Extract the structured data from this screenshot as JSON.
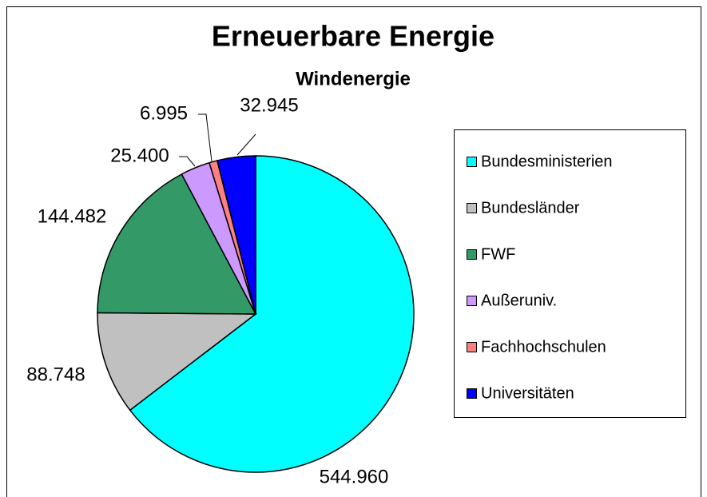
{
  "chart_data": {
    "type": "pie",
    "title": "Erneuerbare Energie",
    "subtitle": "Windenergie",
    "categories": [
      "Bundesministerien",
      "Bundesländer",
      "FWF",
      "Außeruniv.",
      "Fachhochschulen",
      "Universitäten"
    ],
    "values": [
      544960,
      88748,
      144482,
      25400,
      6995,
      32945
    ],
    "value_labels": [
      "544.960",
      "88.748",
      "144.482",
      "25.400",
      "6.995",
      "32.945"
    ],
    "colors": [
      "#00ffff",
      "#c0c0c0",
      "#339966",
      "#cc99ff",
      "#ff8080",
      "#0000ff"
    ],
    "legend": "right"
  }
}
